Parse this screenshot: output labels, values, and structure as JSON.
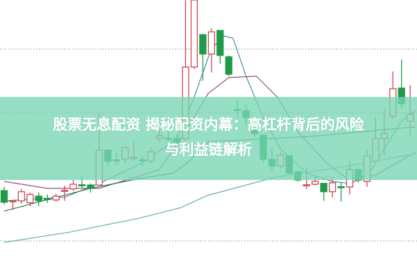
{
  "title": {
    "line1": "股票无息配资 揭秘配资内幕：高杠杆背后的风险",
    "line2": "与利益链解析"
  },
  "colors": {
    "up": "#d0454f",
    "down": "#1f9a48",
    "banner": "#78d6b4",
    "grid": "#9a9a9a",
    "ma": [
      "#3f8f9a",
      "#9a4a7a",
      "#2f7a5a",
      "#6aa8b0"
    ]
  },
  "chart_data": {
    "type": "candlestick",
    "grid": "horizontal-dotted",
    "grid_levels": [
      82.25,
      59.25,
      36,
      13
    ],
    "ylim": [
      0,
      100
    ],
    "candles": [
      [
        31.2,
        32.5,
        26.2,
        27
      ],
      [
        27.2,
        27.5,
        24.2,
        27.5
      ],
      [
        27.5,
        31.8,
        26.5,
        30.8
      ],
      [
        26.8,
        30.5,
        25.5,
        29.8
      ],
      [
        29.2,
        30.5,
        25.5,
        27.5
      ],
      [
        28.3,
        29.8,
        26.8,
        28.2
      ],
      [
        27.8,
        30,
        27.2,
        29.2
      ],
      [
        31.1,
        33,
        27.5,
        31.3
      ],
      [
        31.8,
        35,
        31.2,
        33.5
      ],
      [
        33.3,
        36.8,
        32,
        33.2
      ],
      [
        33.2,
        33.8,
        30.5,
        32
      ],
      [
        33.2,
        59.2,
        33,
        45.8
      ],
      [
        45.8,
        45.8,
        40,
        41.8
      ],
      [
        42.3,
        44.8,
        40.5,
        42.2
      ],
      [
        42.5,
        46.8,
        41.2,
        46.8
      ],
      [
        43,
        48.8,
        42,
        43.2
      ],
      [
        42.3,
        43.5,
        40,
        42.2
      ],
      [
        41.8,
        46.8,
        41.2,
        45.2
      ],
      [
        50,
        54.2,
        48.8,
        51
      ],
      [
        50.1,
        52.5,
        48.8,
        50
      ],
      [
        50,
        51.8,
        48.2,
        48.8
      ],
      [
        50,
        100,
        48.8,
        75.8
      ],
      [
        75.8,
        100,
        75,
        100
      ],
      [
        87.5,
        87.5,
        70.8,
        80.5
      ],
      [
        80.5,
        89.8,
        73.8,
        88.5
      ],
      [
        89,
        89,
        77,
        80
      ],
      [
        79.5,
        80,
        72.5,
        73.2
      ],
      [
        60.5,
        64.2,
        57.5,
        60.4
      ],
      [
        60,
        62,
        55,
        57.5
      ],
      [
        55,
        57.5,
        50.5,
        51.8
      ],
      [
        51.2,
        51.2,
        41.2,
        42.5
      ],
      [
        42.5,
        47,
        38.2,
        40
      ],
      [
        40,
        45,
        39.2,
        44
      ],
      [
        43.8,
        43.8,
        37.5,
        37.5
      ],
      [
        38,
        38,
        34.5,
        35
      ],
      [
        33.2,
        39.2,
        31.8,
        33.3
      ],
      [
        33.5,
        36.8,
        33,
        34.5
      ],
      [
        33.8,
        33.8,
        27.5,
        30.8
      ],
      [
        30.8,
        36.2,
        28.8,
        34
      ],
      [
        32.6,
        34.2,
        27.2,
        32.5
      ],
      [
        32.5,
        41.5,
        29.8,
        38.8
      ],
      [
        38.8,
        39.2,
        34.2,
        35
      ],
      [
        34.5,
        45.8,
        32.5,
        43.8
      ],
      [
        41.8,
        57.5,
        41.2,
        50
      ],
      [
        50,
        60.8,
        43.8,
        51.8
      ],
      [
        58,
        74.2,
        57,
        68
      ],
      [
        68.2,
        78.5,
        60.8,
        62.5
      ],
      [
        56.2,
        69.2,
        51.2,
        58.8
      ]
    ],
    "moving_averages": [
      {
        "points": [
          [
            0,
            27.5
          ],
          [
            7,
            28.8
          ],
          [
            11,
            33.8
          ],
          [
            16,
            41.2
          ],
          [
            20,
            50
          ],
          [
            22,
            65
          ],
          [
            24,
            82.5
          ],
          [
            25.5,
            87
          ],
          [
            26.5,
            86.2
          ],
          [
            28,
            72.5
          ],
          [
            30,
            57.5
          ],
          [
            32,
            46.2
          ],
          [
            35,
            37.5
          ],
          [
            38,
            34.5
          ],
          [
            40,
            33.8
          ],
          [
            42,
            36.2
          ],
          [
            44,
            46.2
          ],
          [
            46,
            56.2
          ],
          [
            47.6,
            60
          ]
        ]
      },
      {
        "points": [
          [
            0,
            34.5
          ],
          [
            3,
            33
          ],
          [
            5,
            32
          ],
          [
            11,
            32
          ],
          [
            18,
            38.8
          ],
          [
            21,
            52.5
          ],
          [
            23.6,
            66.2
          ],
          [
            26,
            72
          ],
          [
            29.2,
            72.5
          ],
          [
            31.6,
            65
          ],
          [
            34,
            52.5
          ],
          [
            37.3,
            41.2
          ],
          [
            39.7,
            35.5
          ],
          [
            43,
            36.8
          ],
          [
            47.6,
            45
          ]
        ]
      },
      {
        "points": [
          [
            0,
            23.8
          ],
          [
            10,
            32
          ],
          [
            15.6,
            35.5
          ],
          [
            19.6,
            37.5
          ],
          [
            21.5,
            42
          ],
          [
            23.6,
            48.8
          ],
          [
            35.7,
            50.8
          ],
          [
            47.6,
            54.2
          ]
        ]
      },
      {
        "points": [
          [
            0,
            12.5
          ],
          [
            7.6,
            16.2
          ],
          [
            15.6,
            21.2
          ],
          [
            20.4,
            25
          ],
          [
            23.6,
            29.5
          ],
          [
            31.6,
            36.2
          ],
          [
            39.7,
            40
          ],
          [
            47.6,
            44.5
          ]
        ]
      }
    ]
  }
}
